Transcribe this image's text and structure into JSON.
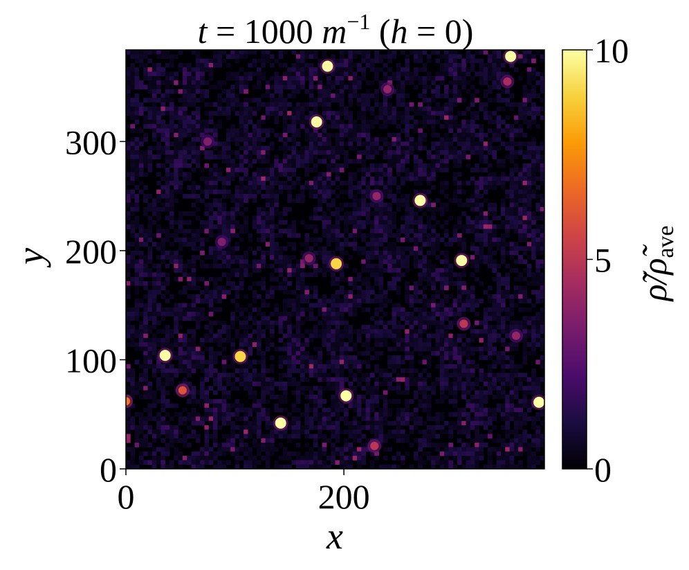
{
  "chart_data": {
    "type": "heatmap",
    "title": "t = 1000 m⁻¹ (h = 0)",
    "title_parts": {
      "t": "t",
      "eq1": " = 1000 ",
      "m": "m",
      "exp": "−1",
      "paren_open": " (",
      "h": "h",
      "eq2": " = 0)"
    },
    "xlabel": "x",
    "ylabel": "y",
    "xlim": [
      0,
      384
    ],
    "ylim": [
      0,
      384
    ],
    "xticks": [
      0,
      200
    ],
    "yticks": [
      0,
      100,
      200,
      300
    ],
    "colorbar": {
      "label": "ρ̃/ρ̃ave",
      "label_parts": {
        "main": "ρ̃/ρ̃",
        "sub": "ave"
      },
      "range": [
        0,
        10
      ],
      "ticks": [
        0,
        5,
        10
      ],
      "colormap": "inferno",
      "colors": [
        "#000004",
        "#1b0c41",
        "#4a0c6b",
        "#781c6d",
        "#a52c60",
        "#cf4446",
        "#ed6925",
        "#fb9b06",
        "#f7d13d",
        "#fcffa4"
      ]
    },
    "background_level": 0.6,
    "peaks": [
      {
        "x": 185,
        "y": 369,
        "value": 10
      },
      {
        "x": 175,
        "y": 318,
        "value": 10
      },
      {
        "x": 270,
        "y": 246,
        "value": 10
      },
      {
        "x": 193,
        "y": 188,
        "value": 9
      },
      {
        "x": 308,
        "y": 191,
        "value": 10
      },
      {
        "x": 36,
        "y": 104,
        "value": 10
      },
      {
        "x": 105,
        "y": 103,
        "value": 9
      },
      {
        "x": 202,
        "y": 67,
        "value": 10
      },
      {
        "x": 142,
        "y": 42,
        "value": 10
      },
      {
        "x": 353,
        "y": 378,
        "value": 10
      },
      {
        "x": 379,
        "y": 61,
        "value": 10
      },
      {
        "x": 0,
        "y": 62,
        "value": 7
      },
      {
        "x": 52,
        "y": 72,
        "value": 6
      },
      {
        "x": 228,
        "y": 21,
        "value": 5
      },
      {
        "x": 310,
        "y": 133,
        "value": 5
      },
      {
        "x": 350,
        "y": 355,
        "value": 4.5
      },
      {
        "x": 230,
        "y": 250,
        "value": 4
      },
      {
        "x": 75,
        "y": 300,
        "value": 3.5
      },
      {
        "x": 88,
        "y": 208,
        "value": 3.5
      },
      {
        "x": 168,
        "y": 193,
        "value": 4
      },
      {
        "x": 240,
        "y": 348,
        "value": 4
      },
      {
        "x": 358,
        "y": 122,
        "value": 4
      }
    ]
  }
}
